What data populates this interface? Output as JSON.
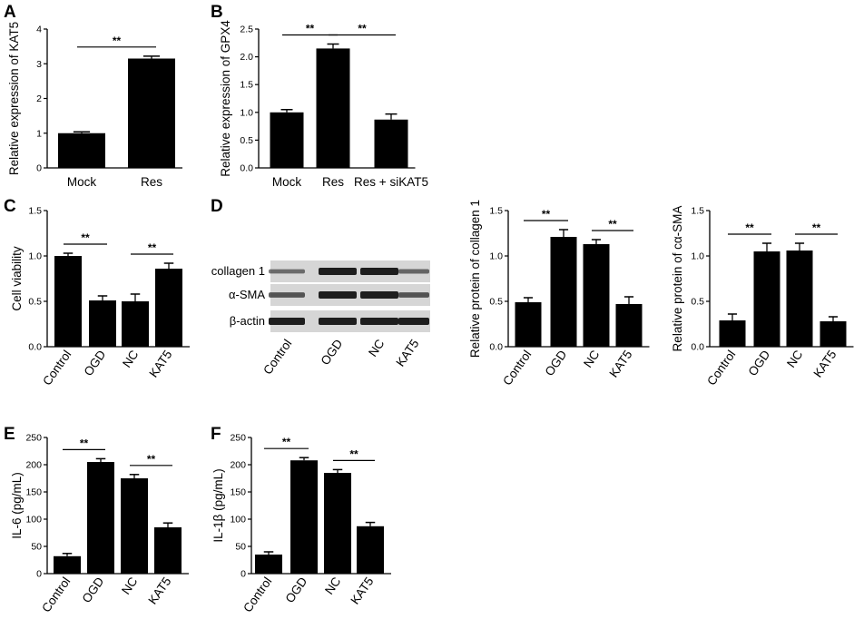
{
  "colors": {
    "bar": "#000000",
    "axis": "#000000",
    "background": "#ffffff",
    "blot_bg": "#d6d6d6",
    "band": "#1e1e1e"
  },
  "chart_data": [
    {
      "panel": "A",
      "type": "bar",
      "categories": [
        "Mock",
        "Res"
      ],
      "values": [
        1.0,
        3.15
      ],
      "errors": [
        0.04,
        0.07
      ],
      "ylabel": "Relative expression of KAT5",
      "ylim": [
        0,
        4
      ],
      "yticks": [
        "0",
        "1",
        "2",
        "3",
        "4"
      ],
      "significance": [
        {
          "from": 0,
          "to": 1,
          "label": "**"
        }
      ]
    },
    {
      "panel": "B",
      "type": "bar",
      "categories": [
        "Mock",
        "Res",
        "Res + siKAT5"
      ],
      "values": [
        1.0,
        2.15,
        0.87
      ],
      "errors": [
        0.05,
        0.08,
        0.1
      ],
      "ylabel": "Relative expression of GPX4",
      "ylim": [
        0,
        2.5
      ],
      "yticks": [
        "0.0",
        "0.5",
        "1.0",
        "1.5",
        "2.0",
        "2.5"
      ],
      "significance": [
        {
          "from": 0,
          "to": 1,
          "label": "**"
        },
        {
          "from": 1,
          "to": 2,
          "label": "**"
        }
      ]
    },
    {
      "panel": "C",
      "type": "bar",
      "categories": [
        "Control",
        "OGD",
        "NC",
        "KAT5"
      ],
      "values": [
        1.0,
        0.51,
        0.5,
        0.86
      ],
      "errors": [
        0.03,
        0.05,
        0.08,
        0.06
      ],
      "ylabel": "Cell viability",
      "ylim": [
        0,
        1.5
      ],
      "yticks": [
        "0.0",
        "0.5",
        "1.0",
        "1.5"
      ],
      "significance": [
        {
          "from": 0,
          "to": 1,
          "label": "**"
        },
        {
          "from": 2,
          "to": 3,
          "label": "**"
        }
      ]
    },
    {
      "panel": "D",
      "type": "bar",
      "categories": [
        "Control",
        "OGD",
        "NC",
        "KAT5"
      ],
      "values": [
        0.49,
        1.21,
        1.13,
        0.47
      ],
      "errors": [
        0.05,
        0.08,
        0.05,
        0.08
      ],
      "ylabel": "Relative protein of collagen 1",
      "ylim": [
        0,
        1.5
      ],
      "yticks": [
        "0.0",
        "0.5",
        "1.0",
        "1.5"
      ],
      "significance": [
        {
          "from": 0,
          "to": 1,
          "label": "**"
        },
        {
          "from": 2,
          "to": 3,
          "label": "**"
        }
      ]
    },
    {
      "panel": "D",
      "type": "bar",
      "categories": [
        "Control",
        "OGD",
        "NC",
        "KAT5"
      ],
      "values": [
        0.29,
        1.05,
        1.06,
        0.28
      ],
      "errors": [
        0.07,
        0.09,
        0.08,
        0.05
      ],
      "ylabel": "Relative protein of cα-SMA",
      "ylim": [
        0,
        1.5
      ],
      "yticks": [
        "0.0",
        "0.5",
        "1.0",
        "1.5"
      ],
      "significance": [
        {
          "from": 0,
          "to": 1,
          "label": "**"
        },
        {
          "from": 2,
          "to": 3,
          "label": "**"
        }
      ]
    },
    {
      "panel": "E",
      "type": "bar",
      "categories": [
        "Control",
        "OGD",
        "NC",
        "KAT5"
      ],
      "values": [
        32,
        205,
        175,
        85
      ],
      "errors": [
        5,
        6,
        7,
        8
      ],
      "ylabel": "IL-6 (pg/mL)",
      "ylim": [
        0,
        250
      ],
      "yticks": [
        "0",
        "50",
        "100",
        "150",
        "200",
        "250"
      ],
      "significance": [
        {
          "from": 0,
          "to": 1,
          "label": "**"
        },
        {
          "from": 2,
          "to": 3,
          "label": "**"
        }
      ]
    },
    {
      "panel": "F",
      "type": "bar",
      "categories": [
        "Control",
        "OGD",
        "NC",
        "KAT5"
      ],
      "values": [
        35,
        208,
        185,
        87
      ],
      "errors": [
        5,
        5,
        6,
        7
      ],
      "ylabel": "IL-1β (pg/mL)",
      "ylim": [
        0,
        250
      ],
      "yticks": [
        "0",
        "50",
        "100",
        "150",
        "200",
        "250"
      ],
      "significance": [
        {
          "from": 0,
          "to": 1,
          "label": "**"
        },
        {
          "from": 2,
          "to": 3,
          "label": "**"
        }
      ]
    }
  ],
  "blot": {
    "panel": "D",
    "rows": [
      "collagen 1",
      "α-SMA",
      "β-actin"
    ],
    "lanes": [
      "Control",
      "OGD",
      "NC",
      "KAT5"
    ],
    "intensities": [
      [
        0.35,
        1.0,
        1.0,
        0.4
      ],
      [
        0.55,
        1.0,
        1.0,
        0.55
      ],
      [
        1.0,
        1.0,
        1.0,
        1.0
      ]
    ]
  }
}
